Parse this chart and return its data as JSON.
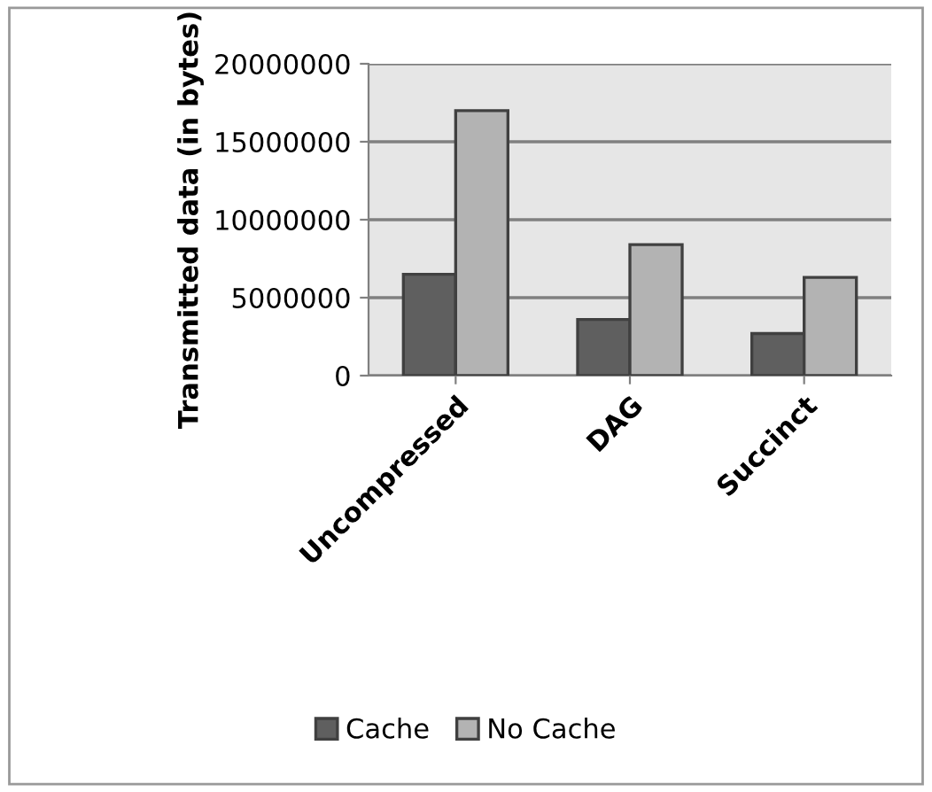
{
  "chart_data": {
    "type": "bar",
    "ylabel": "Transmitted data (in bytes)",
    "categories": [
      "Uncompressed",
      "DAG",
      "Succinct"
    ],
    "series": [
      {
        "name": "Cache",
        "color": "#5f5f5f",
        "values": [
          6500000,
          3600000,
          2700000
        ]
      },
      {
        "name": "No Cache",
        "color": "#b3b3b3",
        "values": [
          17000000,
          8400000,
          6300000
        ]
      }
    ],
    "ylim": [
      0,
      20000000
    ],
    "yticks": [
      0,
      5000000,
      10000000,
      15000000,
      20000000
    ],
    "grid": "y",
    "legend": "bottom"
  }
}
